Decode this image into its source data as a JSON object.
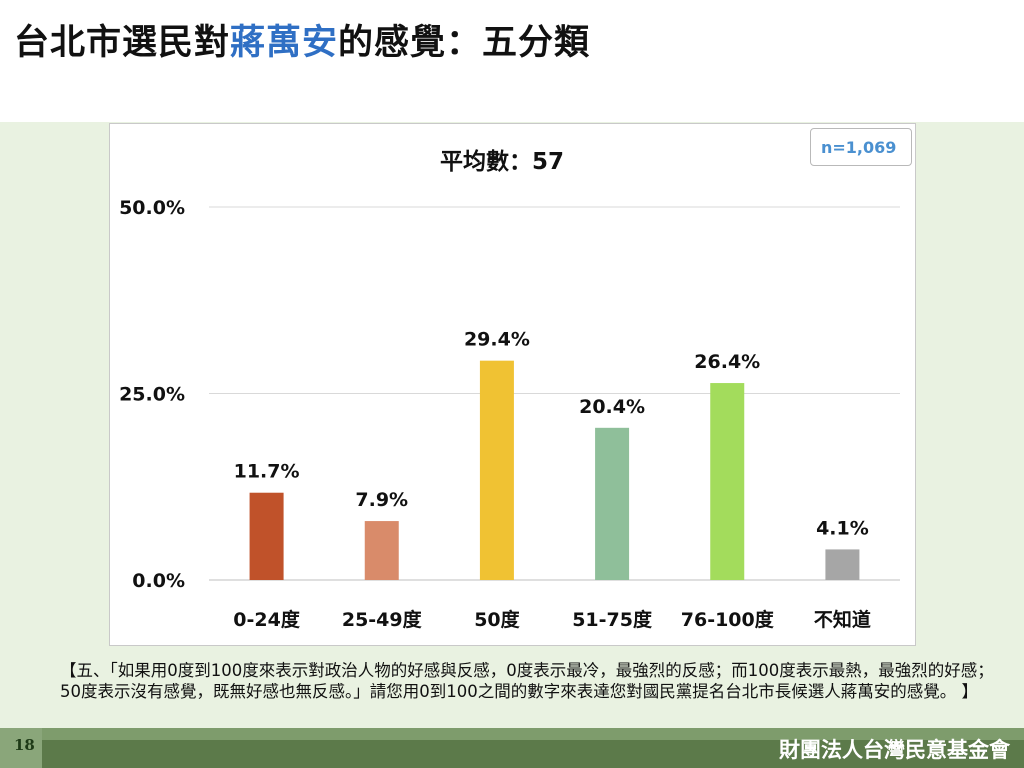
{
  "header": {
    "title_prefix": "台北市選民對",
    "title_highlight": "蔣萬安",
    "title_suffix": "的感覺：五分類"
  },
  "chart_data": {
    "type": "bar",
    "title": "平均數：57",
    "sample_size": "n=1,069",
    "categories": [
      "0-24度",
      "25-49度",
      "50度",
      "51-75度",
      "76-100度",
      "不知道"
    ],
    "values": [
      11.7,
      7.9,
      29.4,
      20.4,
      26.4,
      4.1
    ],
    "value_labels": [
      "11.7%",
      "7.9%",
      "29.4%",
      "20.4%",
      "26.4%",
      "4.1%"
    ],
    "colors": [
      "#c0522a",
      "#d98b6a",
      "#f0c233",
      "#8fbf9a",
      "#a3dc5c",
      "#a6a6a6"
    ],
    "ylim": [
      0,
      50
    ],
    "yticks": [
      "0.0%",
      "25.0%",
      "50.0%"
    ],
    "ytick_values": [
      0,
      25,
      50
    ],
    "grid": true,
    "xlabel": "",
    "ylabel": ""
  },
  "note": "【五、「如果用0度到100度來表示對政治人物的好感與反感，0度表示最冷，最強烈的反感；而100度表示最熱，最強烈的好感；50度表示沒有感覺，既無好感也無反感。」請您用0到100之間的數字來表達您對國民黨提名台北市長候選人蔣萬安的感覺。 】",
  "footer": {
    "page_number": "18",
    "organization": "財團法人台灣民意基金會"
  }
}
